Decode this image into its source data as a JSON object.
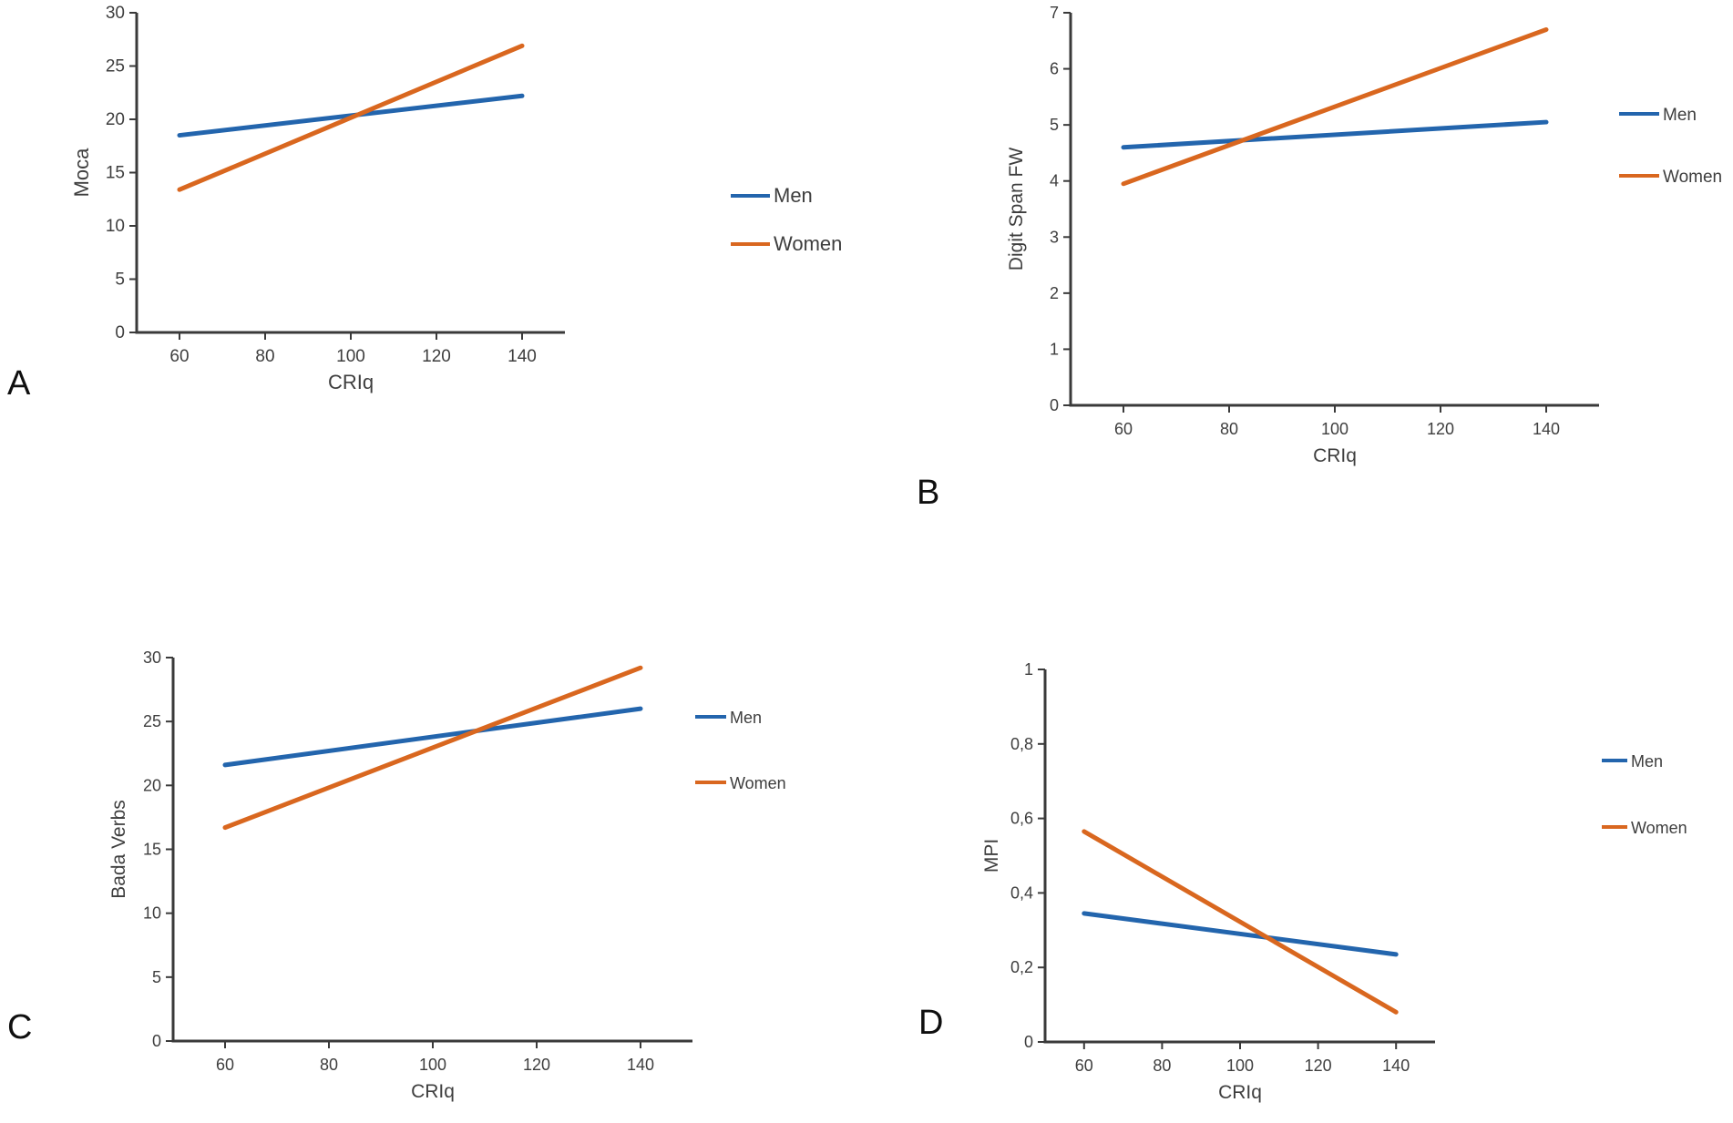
{
  "figure": {
    "background": "#ffffff"
  },
  "colors": {
    "men": "#2365ad",
    "women": "#d9671f",
    "axis": "#3a3a3a",
    "text": "#3e3e3e",
    "letter": "#0f0f0f"
  },
  "chart_data": [
    {
      "id": "A",
      "panel_label": "A",
      "type": "line",
      "title": "",
      "xlabel": "CRIq",
      "ylabel": "Moca",
      "x": [
        60,
        140
      ],
      "xlim": [
        50,
        150
      ],
      "ylim": [
        0,
        30
      ],
      "xticks": [
        60,
        80,
        100,
        120,
        140
      ],
      "xtick_labels": [
        "60",
        "80",
        "100",
        "120",
        "140"
      ],
      "yticks": [
        0,
        5,
        10,
        15,
        20,
        25,
        30
      ],
      "ytick_labels": [
        "0",
        "5",
        "10",
        "15",
        "20",
        "25",
        "30"
      ],
      "grid": false,
      "legend_position": "right",
      "series": [
        {
          "name": "Men",
          "color_key": "men",
          "values": [
            18.5,
            22.2
          ]
        },
        {
          "name": "Women",
          "color_key": "women",
          "values": [
            13.4,
            26.9
          ]
        }
      ]
    },
    {
      "id": "B",
      "panel_label": "B",
      "type": "line",
      "title": "",
      "xlabel": "CRIq",
      "ylabel": "Digit Span FW",
      "x": [
        60,
        140
      ],
      "xlim": [
        50,
        150
      ],
      "ylim": [
        0,
        7
      ],
      "xticks": [
        60,
        80,
        100,
        120,
        140
      ],
      "xtick_labels": [
        "60",
        "80",
        "100",
        "120",
        "140"
      ],
      "yticks": [
        0,
        1,
        2,
        3,
        4,
        5,
        6,
        7
      ],
      "ytick_labels": [
        "0",
        "1",
        "2",
        "3",
        "4",
        "5",
        "6",
        "7"
      ],
      "grid": false,
      "legend_position": "right",
      "series": [
        {
          "name": "Men",
          "color_key": "men",
          "values": [
            4.6,
            5.05
          ]
        },
        {
          "name": "Women",
          "color_key": "women",
          "values": [
            3.95,
            6.7
          ]
        }
      ]
    },
    {
      "id": "C",
      "panel_label": "C",
      "type": "line",
      "title": "",
      "xlabel": "CRIq",
      "ylabel": "Bada Verbs",
      "x": [
        60,
        140
      ],
      "xlim": [
        50,
        150
      ],
      "ylim": [
        0,
        30
      ],
      "xticks": [
        60,
        80,
        100,
        120,
        140
      ],
      "xtick_labels": [
        "60",
        "80",
        "100",
        "120",
        "140"
      ],
      "yticks": [
        0,
        5,
        10,
        15,
        20,
        25,
        30
      ],
      "ytick_labels": [
        "0",
        "5",
        "10",
        "15",
        "20",
        "25",
        "30"
      ],
      "grid": false,
      "legend_position": "right",
      "series": [
        {
          "name": "Men",
          "color_key": "men",
          "values": [
            21.6,
            26.0
          ]
        },
        {
          "name": "Women",
          "color_key": "women",
          "values": [
            16.7,
            29.2
          ]
        }
      ]
    },
    {
      "id": "D",
      "panel_label": "D",
      "type": "line",
      "title": "",
      "xlabel": "CRIq",
      "ylabel": "MPI",
      "x": [
        60,
        140
      ],
      "xlim": [
        50,
        150
      ],
      "ylim": [
        0,
        1
      ],
      "xticks": [
        60,
        80,
        100,
        120,
        140
      ],
      "xtick_labels": [
        "60",
        "80",
        "100",
        "120",
        "140"
      ],
      "yticks": [
        0,
        0.2,
        0.4,
        0.6,
        0.8,
        1
      ],
      "ytick_labels": [
        "0",
        "0,2",
        "0,4",
        "0,6",
        "0,8",
        "1"
      ],
      "grid": false,
      "legend_position": "right",
      "series": [
        {
          "name": "Men",
          "color_key": "men",
          "values": [
            0.345,
            0.235
          ]
        },
        {
          "name": "Women",
          "color_key": "women",
          "values": [
            0.565,
            0.08
          ]
        }
      ]
    }
  ]
}
